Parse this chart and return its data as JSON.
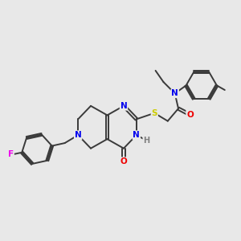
{
  "bg_color": "#e8e8e8",
  "bond_color": "#3a3a3a",
  "bond_width": 1.4,
  "atom_colors": {
    "N": "#0000ee",
    "O": "#ee0000",
    "S": "#cccc00",
    "F": "#ee00ee",
    "H": "#808080",
    "C": "#3a3a3a"
  },
  "font_size": 7.0
}
